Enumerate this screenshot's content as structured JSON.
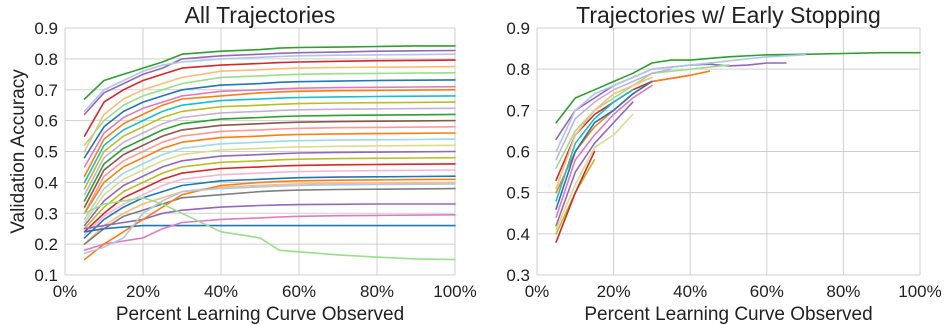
{
  "chart_data": [
    {
      "type": "line",
      "title": "All Trajectories",
      "xlabel": "Percent Learning Curve Observed",
      "ylabel": "Validation Accuracy",
      "xlim": [
        0,
        100
      ],
      "ylim": [
        0.1,
        0.9
      ],
      "x_ticks": [
        "0%",
        "20%",
        "40%",
        "60%",
        "80%",
        "100%"
      ],
      "y_ticks": [
        "0.1",
        "0.2",
        "0.3",
        "0.4",
        "0.5",
        "0.6",
        "0.7",
        "0.8",
        "0.9"
      ],
      "grid": true,
      "legend": "none",
      "x": [
        5,
        10,
        15,
        20,
        25,
        30,
        40,
        50,
        55,
        60,
        70,
        80,
        90,
        100
      ],
      "series": [
        {
          "color": "#2ca02c",
          "values": [
            0.67,
            0.73,
            0.75,
            0.77,
            0.79,
            0.815,
            0.825,
            0.83,
            0.835,
            0.837,
            0.838,
            0.84,
            0.842,
            0.842
          ]
        },
        {
          "color": "#9467bd",
          "values": [
            0.62,
            0.69,
            0.72,
            0.75,
            0.77,
            0.8,
            0.81,
            0.815,
            0.818,
            0.82,
            0.822,
            0.825,
            0.826,
            0.827
          ]
        },
        {
          "color": "#aec7e8",
          "values": [
            0.63,
            0.7,
            0.73,
            0.76,
            0.78,
            0.79,
            0.8,
            0.805,
            0.808,
            0.81,
            0.812,
            0.813,
            0.814,
            0.815
          ]
        },
        {
          "color": "#d62728",
          "values": [
            0.55,
            0.66,
            0.7,
            0.73,
            0.75,
            0.77,
            0.78,
            0.785,
            0.788,
            0.79,
            0.792,
            0.794,
            0.795,
            0.796
          ]
        },
        {
          "color": "#ffbb78",
          "values": [
            0.5,
            0.62,
            0.67,
            0.7,
            0.72,
            0.74,
            0.76,
            0.765,
            0.768,
            0.77,
            0.772,
            0.773,
            0.774,
            0.775
          ]
        },
        {
          "color": "#98df8a",
          "values": [
            0.52,
            0.6,
            0.65,
            0.68,
            0.7,
            0.72,
            0.74,
            0.745,
            0.748,
            0.75,
            0.752,
            0.753,
            0.754,
            0.755
          ]
        },
        {
          "color": "#1f77b4",
          "values": [
            0.48,
            0.58,
            0.63,
            0.66,
            0.68,
            0.7,
            0.715,
            0.72,
            0.724,
            0.726,
            0.728,
            0.73,
            0.731,
            0.732
          ]
        },
        {
          "color": "#e377c2",
          "values": [
            0.45,
            0.56,
            0.61,
            0.64,
            0.66,
            0.68,
            0.695,
            0.7,
            0.703,
            0.705,
            0.707,
            0.708,
            0.709,
            0.71
          ]
        },
        {
          "color": "#ff7f0e",
          "values": [
            0.42,
            0.54,
            0.59,
            0.62,
            0.65,
            0.67,
            0.68,
            0.69,
            0.693,
            0.695,
            0.697,
            0.698,
            0.699,
            0.7
          ]
        },
        {
          "color": "#17becf",
          "values": [
            0.4,
            0.52,
            0.57,
            0.6,
            0.63,
            0.65,
            0.665,
            0.67,
            0.673,
            0.675,
            0.677,
            0.678,
            0.679,
            0.68
          ]
        },
        {
          "color": "#bcbd22",
          "values": [
            0.38,
            0.5,
            0.55,
            0.58,
            0.61,
            0.63,
            0.645,
            0.65,
            0.653,
            0.655,
            0.657,
            0.658,
            0.659,
            0.66
          ]
        },
        {
          "color": "#c5b0d5",
          "values": [
            0.36,
            0.48,
            0.53,
            0.56,
            0.59,
            0.61,
            0.625,
            0.63,
            0.633,
            0.635,
            0.637,
            0.638,
            0.639,
            0.64
          ]
        },
        {
          "color": "#2ca02c",
          "values": [
            0.34,
            0.46,
            0.51,
            0.54,
            0.57,
            0.59,
            0.605,
            0.61,
            0.613,
            0.615,
            0.617,
            0.618,
            0.619,
            0.62
          ]
        },
        {
          "color": "#8c564b",
          "values": [
            0.32,
            0.44,
            0.49,
            0.52,
            0.55,
            0.57,
            0.585,
            0.59,
            0.593,
            0.595,
            0.597,
            0.598,
            0.599,
            0.6
          ]
        },
        {
          "color": "#ff9896",
          "values": [
            0.3,
            0.42,
            0.47,
            0.5,
            0.53,
            0.55,
            0.565,
            0.57,
            0.573,
            0.575,
            0.577,
            0.578,
            0.579,
            0.58
          ]
        },
        {
          "color": "#ff7f0e",
          "values": [
            0.3,
            0.4,
            0.45,
            0.48,
            0.51,
            0.53,
            0.545,
            0.55,
            0.553,
            0.555,
            0.557,
            0.558,
            0.559,
            0.56
          ]
        },
        {
          "color": "#9edae5",
          "values": [
            0.28,
            0.38,
            0.43,
            0.46,
            0.49,
            0.51,
            0.525,
            0.53,
            0.533,
            0.535,
            0.537,
            0.538,
            0.539,
            0.54
          ]
        },
        {
          "color": "#dbdb8d",
          "values": [
            0.27,
            0.36,
            0.41,
            0.44,
            0.47,
            0.49,
            0.505,
            0.51,
            0.513,
            0.515,
            0.517,
            0.518,
            0.519,
            0.52
          ]
        },
        {
          "color": "#9467bd",
          "values": [
            0.26,
            0.34,
            0.39,
            0.42,
            0.45,
            0.47,
            0.485,
            0.49,
            0.493,
            0.495,
            0.497,
            0.498,
            0.499,
            0.5
          ]
        },
        {
          "color": "#bcbd22",
          "values": [
            0.25,
            0.32,
            0.37,
            0.4,
            0.43,
            0.45,
            0.465,
            0.47,
            0.473,
            0.475,
            0.477,
            0.478,
            0.479,
            0.48
          ]
        },
        {
          "color": "#d62728",
          "values": [
            0.24,
            0.3,
            0.35,
            0.38,
            0.41,
            0.43,
            0.445,
            0.45,
            0.453,
            0.455,
            0.457,
            0.458,
            0.459,
            0.46
          ]
        },
        {
          "color": "#f7b6d2",
          "values": [
            0.23,
            0.29,
            0.33,
            0.36,
            0.39,
            0.41,
            0.425,
            0.43,
            0.433,
            0.435,
            0.437,
            0.438,
            0.439,
            0.44
          ]
        },
        {
          "color": "#1f77b4",
          "values": [
            0.22,
            0.28,
            0.32,
            0.35,
            0.37,
            0.39,
            0.405,
            0.41,
            0.413,
            0.415,
            0.417,
            0.418,
            0.419,
            0.42
          ]
        },
        {
          "color": "#ffbb78",
          "values": [
            0.2,
            0.26,
            0.3,
            0.33,
            0.35,
            0.37,
            0.385,
            0.39,
            0.393,
            0.395,
            0.397,
            0.398,
            0.399,
            0.4
          ]
        },
        {
          "color": "#7f7f7f",
          "values": [
            0.2,
            0.25,
            0.29,
            0.31,
            0.33,
            0.35,
            0.36,
            0.37,
            0.373,
            0.375,
            0.377,
            0.378,
            0.379,
            0.38
          ]
        },
        {
          "color": "#9467bd",
          "values": [
            0.25,
            0.26,
            0.27,
            0.28,
            0.3,
            0.31,
            0.32,
            0.325,
            0.327,
            0.328,
            0.329,
            0.33,
            0.33,
            0.33
          ]
        },
        {
          "color": "#1f77b4",
          "values": [
            0.24,
            0.25,
            0.255,
            0.26,
            0.26,
            0.26,
            0.26,
            0.26,
            0.26,
            0.26,
            0.26,
            0.26,
            0.26,
            0.26
          ]
        },
        {
          "color": "#e377c2",
          "values": [
            0.18,
            0.2,
            0.21,
            0.22,
            0.25,
            0.27,
            0.28,
            0.285,
            0.288,
            0.29,
            0.292,
            0.293,
            0.294,
            0.295
          ]
        },
        {
          "color": "#ff7f0e",
          "values": [
            0.15,
            0.2,
            0.24,
            0.28,
            0.32,
            0.36,
            0.39,
            0.4,
            0.403,
            0.405,
            0.407,
            0.408,
            0.409,
            0.41
          ]
        },
        {
          "color": "#aec7e8",
          "values": [
            0.17,
            0.19,
            0.22,
            0.3,
            0.34,
            0.37,
            0.38,
            0.385,
            0.388,
            0.39,
            0.392,
            0.393,
            0.394,
            0.395
          ]
        },
        {
          "color": "#98df8a",
          "values": [
            0.3,
            0.33,
            0.34,
            0.35,
            0.33,
            0.3,
            0.24,
            0.22,
            0.18,
            0.175,
            0.165,
            0.158,
            0.152,
            0.15
          ]
        }
      ]
    },
    {
      "type": "line",
      "title": "Trajectories w/ Early Stopping",
      "xlabel": "Percent Learning Curve Observed",
      "ylabel": "",
      "xlim": [
        0,
        100
      ],
      "ylim": [
        0.3,
        0.9
      ],
      "x_ticks": [
        "0%",
        "20%",
        "40%",
        "60%",
        "80%",
        "100%"
      ],
      "y_ticks": [
        "0.3",
        "0.4",
        "0.5",
        "0.6",
        "0.7",
        "0.8",
        "0.9"
      ],
      "grid": true,
      "legend": "none",
      "series": [
        {
          "color": "#2ca02c",
          "x": [
            5,
            10,
            15,
            20,
            25,
            30,
            35,
            40,
            50,
            60,
            70,
            80,
            90,
            100
          ],
          "values": [
            0.67,
            0.73,
            0.75,
            0.77,
            0.79,
            0.815,
            0.822,
            0.822,
            0.83,
            0.835,
            0.836,
            0.838,
            0.84,
            0.84
          ]
        },
        {
          "color": "#9467bd",
          "x": [
            5,
            10,
            15,
            20,
            25,
            30,
            40,
            45,
            50,
            55,
            60,
            65
          ],
          "values": [
            0.63,
            0.7,
            0.73,
            0.76,
            0.78,
            0.8,
            0.81,
            0.812,
            0.808,
            0.81,
            0.815,
            0.815
          ]
        },
        {
          "color": "#aec7e8",
          "x": [
            5,
            10,
            15,
            20,
            25,
            30,
            40,
            50,
            60,
            70
          ],
          "values": [
            0.6,
            0.7,
            0.74,
            0.76,
            0.78,
            0.8,
            0.81,
            0.82,
            0.83,
            0.835
          ]
        },
        {
          "color": "#d62728",
          "x": [
            5,
            10,
            15,
            20,
            25,
            30,
            40
          ],
          "values": [
            0.53,
            0.64,
            0.69,
            0.72,
            0.75,
            0.77,
            0.785
          ]
        },
        {
          "color": "#ff7f0e",
          "x": [
            5,
            10,
            15,
            20,
            25,
            30,
            40,
            45
          ],
          "values": [
            0.5,
            0.6,
            0.66,
            0.7,
            0.74,
            0.77,
            0.785,
            0.795
          ]
        },
        {
          "color": "#98df8a",
          "x": [
            5,
            10,
            15,
            20,
            25,
            30,
            40,
            50
          ],
          "values": [
            0.56,
            0.65,
            0.7,
            0.73,
            0.76,
            0.79,
            0.8,
            0.81
          ]
        },
        {
          "color": "#1f77b4",
          "x": [
            5,
            10,
            15,
            20,
            25,
            30
          ],
          "values": [
            0.46,
            0.6,
            0.67,
            0.7,
            0.74,
            0.77
          ]
        },
        {
          "color": "#e377c2",
          "x": [
            5,
            10,
            15,
            20,
            25,
            30
          ],
          "values": [
            0.44,
            0.58,
            0.64,
            0.69,
            0.73,
            0.76
          ]
        },
        {
          "color": "#9467bd",
          "x": [
            5,
            10,
            15,
            20,
            25
          ],
          "values": [
            0.42,
            0.55,
            0.62,
            0.67,
            0.72
          ]
        },
        {
          "color": "#bcbd22",
          "x": [
            5,
            10,
            15
          ],
          "values": [
            0.4,
            0.5,
            0.58
          ]
        },
        {
          "color": "#d62728",
          "x": [
            5,
            10,
            15
          ],
          "values": [
            0.38,
            0.5,
            0.6
          ]
        },
        {
          "color": "#dbdb8d",
          "x": [
            5,
            10,
            15,
            20,
            25
          ],
          "values": [
            0.41,
            0.52,
            0.61,
            0.64,
            0.69
          ]
        },
        {
          "color": "#17becf",
          "x": [
            5,
            10,
            15,
            20,
            25
          ],
          "values": [
            0.48,
            0.62,
            0.68,
            0.72,
            0.75
          ]
        },
        {
          "color": "#ffbb78",
          "x": [
            5,
            10,
            15,
            20,
            25,
            30
          ],
          "values": [
            0.51,
            0.64,
            0.7,
            0.74,
            0.76,
            0.78
          ]
        },
        {
          "color": "#c5b0d5",
          "x": [
            5,
            10,
            15,
            20,
            25,
            30,
            35
          ],
          "values": [
            0.58,
            0.68,
            0.72,
            0.75,
            0.77,
            0.79,
            0.8
          ]
        }
      ]
    }
  ]
}
